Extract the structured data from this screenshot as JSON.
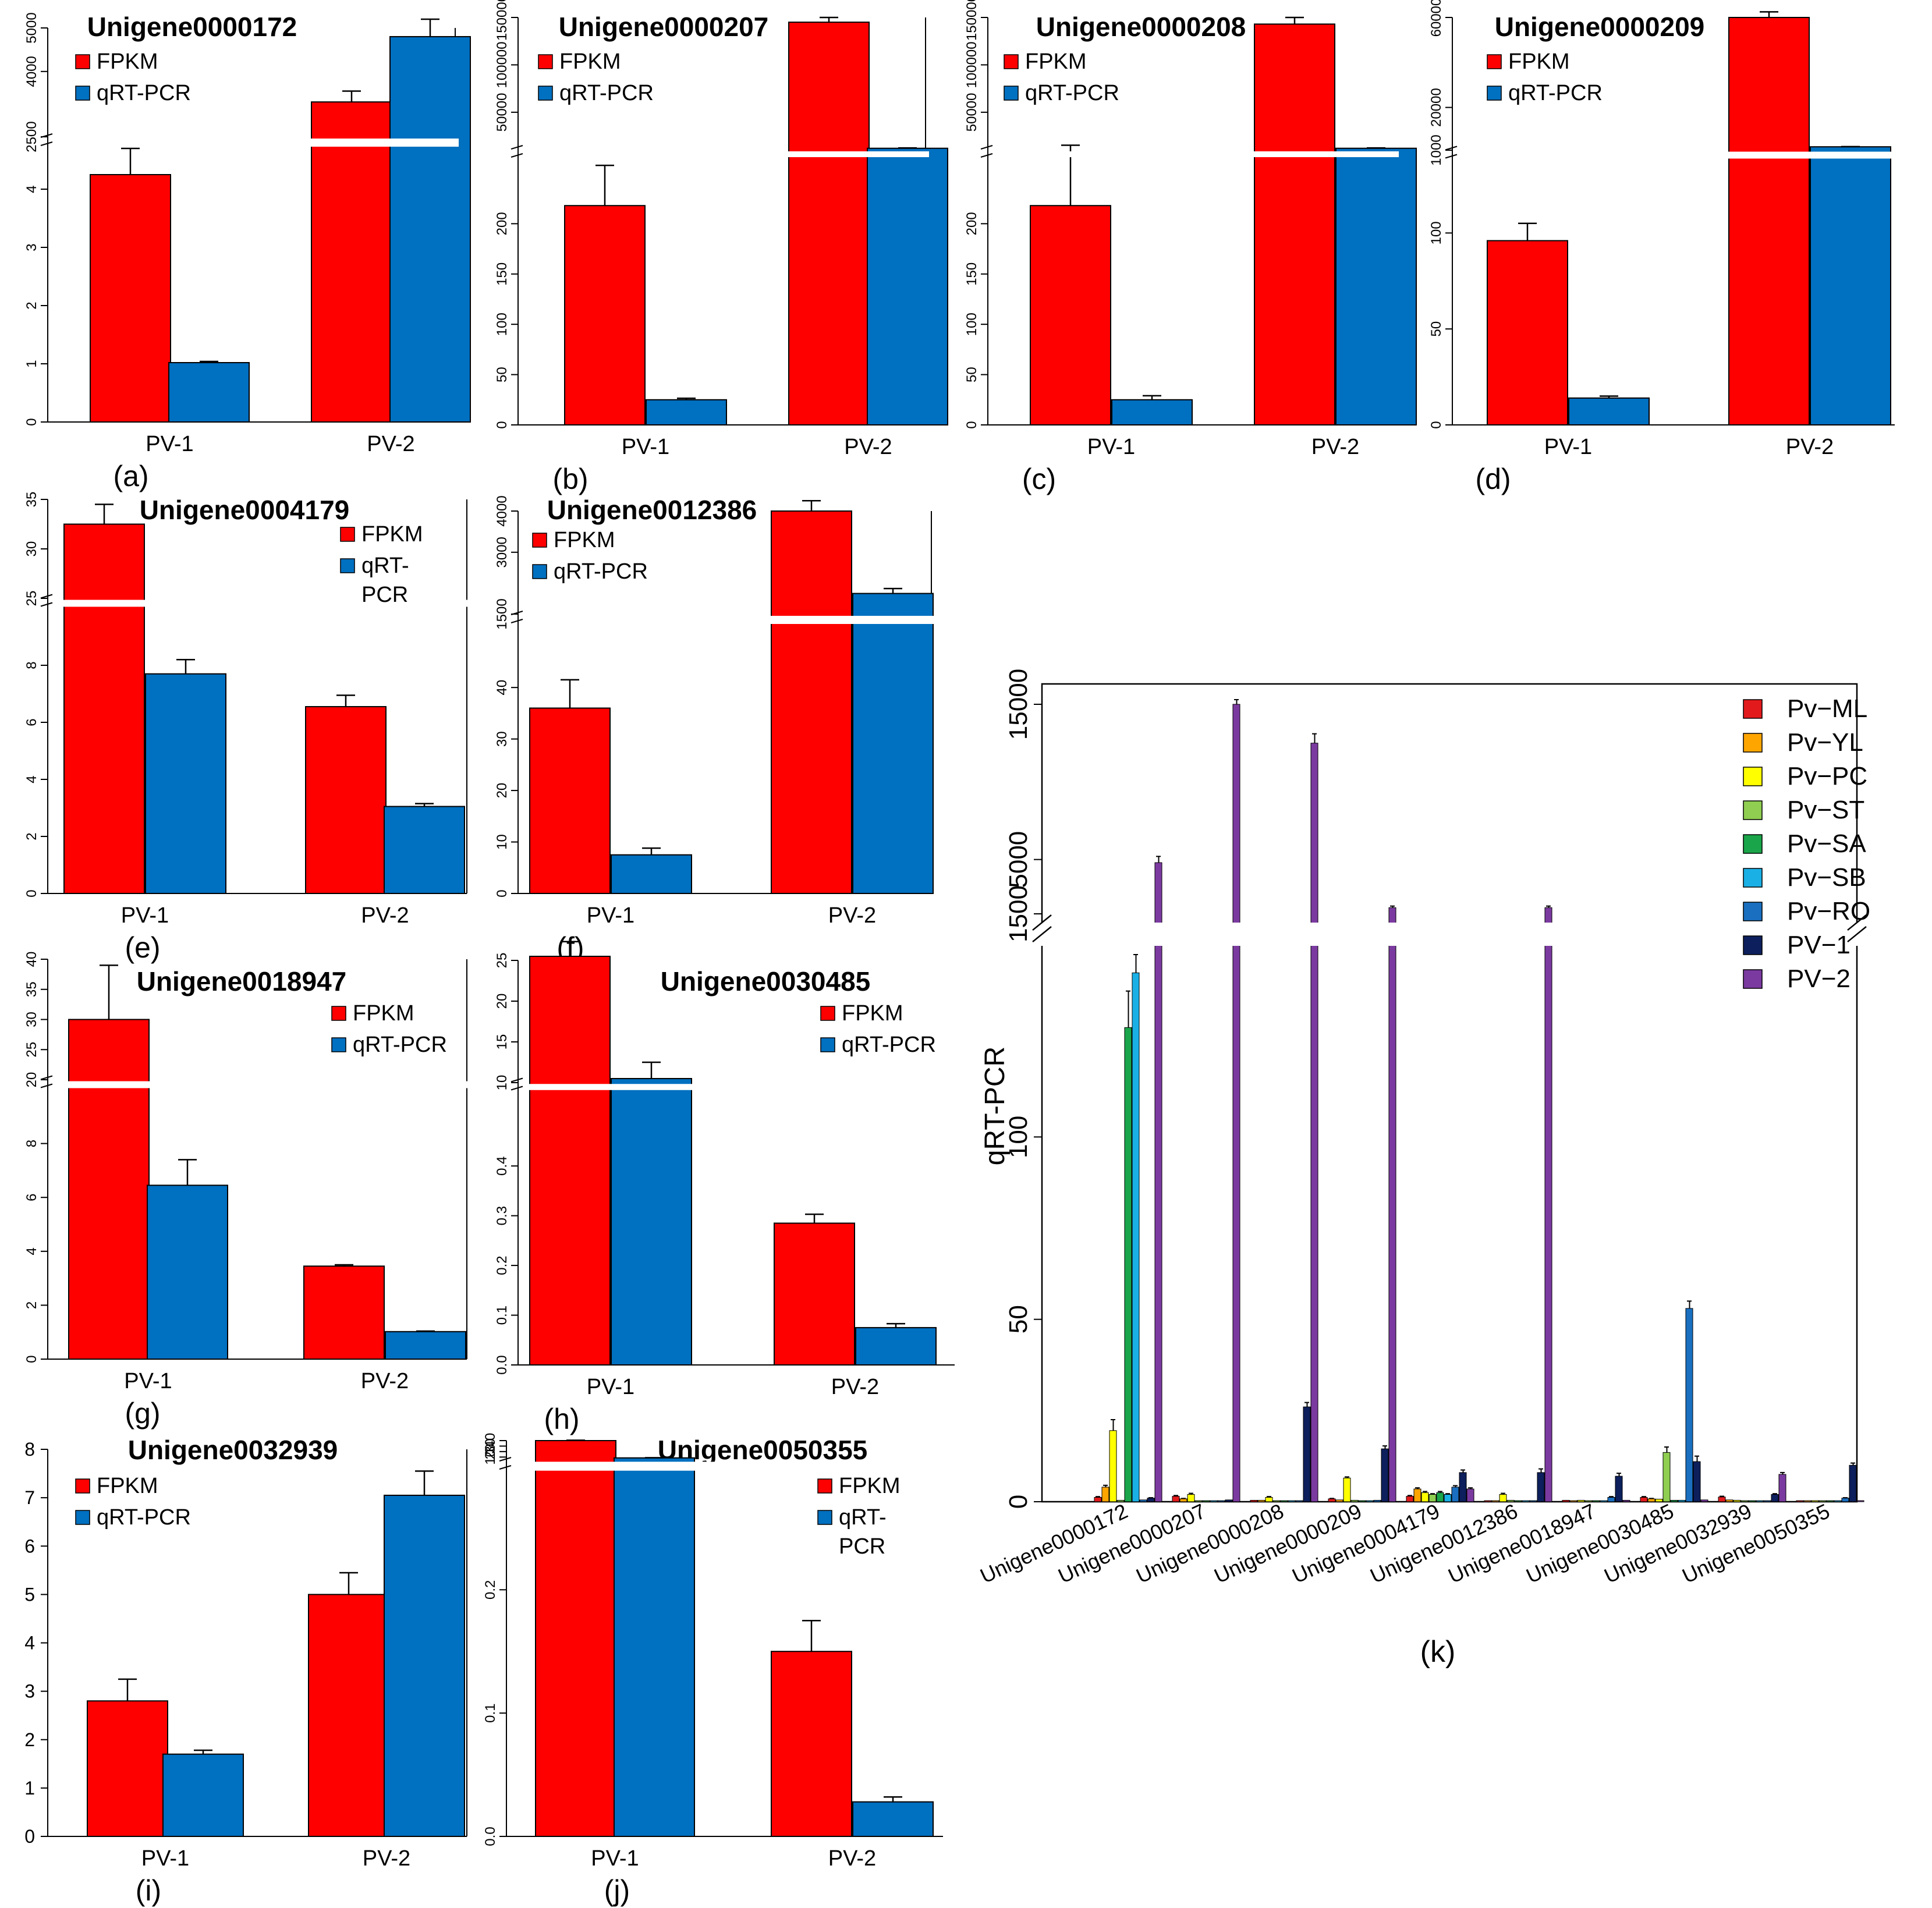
{
  "legend_fpkm": "FPKM",
  "legend_qrt": "qRT-PCR",
  "legend_qrt_line1": "qRT-",
  "legend_qrt_line2": "PCR",
  "ylabel_k": "qRT-PCR",
  "colors": {
    "fpkm": "#ff0000",
    "qrt": "#0070c0",
    "k_series": [
      "#e31a1c",
      "#ffa500",
      "#ffff00",
      "#8fce50",
      "#1aa54a",
      "#1ab0e6",
      "#1a6fc0",
      "#0d1f5c",
      "#7b3aa0"
    ]
  },
  "chart_data": [
    {
      "panel_label": "(a)",
      "type": "bar",
      "title": "Unigene0000172",
      "categories": [
        "PV-1",
        "PV-2"
      ],
      "series": [
        {
          "name": "FPKM",
          "values": [
            4.25,
            3300
          ],
          "errors": [
            0.45,
            250
          ]
        },
        {
          "name": "qRT-PCR",
          "values": [
            1.02,
            4800
          ],
          "errors": [
            0.02,
            400
          ]
        }
      ],
      "axis_break": {
        "lower_range": [
          0,
          4.7
        ],
        "upper_range": [
          2500,
          5000
        ]
      },
      "lower_ticks": [
        "0",
        "1",
        "2",
        "3",
        "4"
      ],
      "upper_ticks": [
        "2500",
        "4000",
        "5000"
      ]
    },
    {
      "panel_label": "(b)",
      "type": "bar",
      "title": "Unigene0000207",
      "categories": [
        "PV-1",
        "PV-2"
      ],
      "series": [
        {
          "name": "FPKM",
          "values": [
            218,
            145000
          ],
          "errors": [
            40,
            5000
          ]
        },
        {
          "name": "qRT-PCR",
          "values": [
            25,
            12000
          ],
          "errors": [
            1.5,
            400
          ]
        }
      ],
      "axis_break": {
        "lower_range": [
          0,
          265
        ],
        "upper_range": [
          10000,
          150000
        ]
      },
      "lower_ticks": [
        "0",
        "50",
        "100",
        "150",
        "200"
      ],
      "upper_ticks": [
        "100000",
        "50000",
        "150000"
      ]
    },
    {
      "panel_label": "(c)",
      "type": "bar",
      "title": "Unigene0000208",
      "categories": [
        "PV-1",
        "PV-2"
      ],
      "series": [
        {
          "name": "FPKM",
          "values": [
            218,
            143000
          ],
          "errors": [
            60,
            7000
          ]
        },
        {
          "name": "qRT-PCR",
          "values": [
            25,
            12000
          ],
          "errors": [
            4,
            400
          ]
        }
      ],
      "axis_break": {
        "lower_range": [
          0,
          265
        ],
        "upper_range": [
          10000,
          150000
        ]
      },
      "lower_ticks": [
        "0",
        "50",
        "100",
        "150",
        "200"
      ],
      "upper_ticks": [
        "100000",
        "50000",
        "150000"
      ]
    },
    {
      "panel_label": "(d)",
      "type": "bar",
      "title": "Unigene0000209",
      "categories": [
        "PV-1",
        "PV-2"
      ],
      "series": [
        {
          "name": "FPKM",
          "values": [
            96,
            60000
          ],
          "errors": [
            9,
            2500
          ]
        },
        {
          "name": "qRT-PCR",
          "values": [
            14,
            2500
          ],
          "errors": [
            1,
            100
          ]
        }
      ],
      "axis_break": {
        "lower_range": [
          0,
          138
        ],
        "upper_range": [
          1000,
          60000
        ]
      },
      "lower_ticks": [
        "0",
        "50",
        "100"
      ],
      "upper_ticks": [
        "1000",
        "20000",
        "60000"
      ]
    },
    {
      "panel_label": "(e)",
      "type": "bar",
      "title": "Unigene0004179",
      "categories": [
        "PV-1",
        "PV-2"
      ],
      "series": [
        {
          "name": "FPKM",
          "values": [
            32.5,
            6.55
          ],
          "errors": [
            2,
            0.4
          ]
        },
        {
          "name": "qRT-PCR",
          "values": [
            7.7,
            3.05
          ],
          "errors": [
            0.5,
            0.1
          ]
        }
      ],
      "axis_break": {
        "lower_range": [
          0,
          10
        ],
        "upper_range": [
          25,
          35
        ]
      },
      "lower_ticks": [
        "0",
        "2",
        "4",
        "6",
        "8"
      ],
      "upper_ticks": [
        "25",
        "30",
        "35"
      ]
    },
    {
      "panel_label": "(f)",
      "type": "bar",
      "title": "Unigene0012386",
      "categories": [
        "PV-1",
        "PV-2"
      ],
      "series": [
        {
          "name": "FPKM",
          "values": [
            36,
            4000
          ],
          "errors": [
            5.5,
            250
          ]
        },
        {
          "name": "qRT-PCR",
          "values": [
            7.5,
            2000
          ],
          "errors": [
            1.3,
            120
          ]
        }
      ],
      "axis_break": {
        "lower_range": [
          0,
          52
        ],
        "upper_range": [
          1500,
          4000
        ]
      },
      "lower_ticks": [
        "0",
        "10",
        "20",
        "30",
        "40"
      ],
      "upper_ticks": [
        "1500",
        "3000",
        "4000"
      ]
    },
    {
      "panel_label": "(g)",
      "type": "bar",
      "title": "Unigene0018947",
      "categories": [
        "PV-1",
        "PV-2"
      ],
      "series": [
        {
          "name": "FPKM",
          "values": [
            30,
            3.45
          ],
          "errors": [
            9,
            0.05
          ]
        },
        {
          "name": "qRT-PCR",
          "values": [
            6.45,
            1.02
          ],
          "errors": [
            0.95,
            0.02
          ]
        }
      ],
      "axis_break": {
        "lower_range": [
          0,
          10
        ],
        "upper_range": [
          20,
          40
        ]
      },
      "lower_ticks": [
        "0",
        "2",
        "4",
        "6",
        "8"
      ],
      "upper_ticks": [
        "20",
        "25",
        "30",
        "35",
        "40"
      ]
    },
    {
      "panel_label": "(h)",
      "type": "bar",
      "title": "Unigene0030485",
      "categories": [
        "PV-1",
        "PV-2"
      ],
      "series": [
        {
          "name": "FPKM",
          "values": [
            25.5,
            0.285
          ],
          "errors": [
            1.8,
            0.018
          ]
        },
        {
          "name": "qRT-PCR",
          "values": [
            10.5,
            0.075
          ],
          "errors": [
            2,
            0.008
          ]
        }
      ],
      "axis_break": {
        "lower_range": [
          0,
          0.55
        ],
        "upper_range": [
          10,
          25
        ]
      },
      "lower_ticks": [
        "0.0",
        "0.1",
        "0.2",
        "0.3",
        "0.4"
      ],
      "upper_ticks": [
        "10",
        "15",
        "20",
        "25"
      ]
    },
    {
      "panel_label": "(i)",
      "type": "bar",
      "title": "Unigene0032939",
      "categories": [
        "PV-1",
        "PV-2"
      ],
      "series": [
        {
          "name": "FPKM",
          "values": [
            2.8,
            5.0
          ],
          "errors": [
            0.45,
            0.45
          ]
        },
        {
          "name": "qRT-PCR",
          "values": [
            1.7,
            7.05
          ],
          "errors": [
            0.08,
            0.5
          ]
        }
      ],
      "ylim": [
        0,
        8
      ],
      "ticks": [
        "0",
        "1",
        "2",
        "3",
        "4",
        "5",
        "6",
        "7",
        "8"
      ]
    },
    {
      "panel_label": "(j)",
      "type": "bar",
      "title": "Unigene0050355",
      "categories": [
        "PV-1",
        "PV-2"
      ],
      "series": [
        {
          "name": "FPKM",
          "values": [
            40,
            0.15
          ],
          "errors": [
            0.7,
            0.025
          ]
        },
        {
          "name": "qRT-PCR",
          "values": [
            8.5,
            0.028
          ],
          "errors": [
            0.3,
            0.004
          ]
        }
      ],
      "axis_break": {
        "lower_range": [
          0,
          0.295
        ],
        "upper_range": [
          5,
          40
        ]
      },
      "lower_ticks": [
        "0.0",
        "0.1",
        "0.2"
      ],
      "upper_ticks": [
        "10",
        "20",
        "30",
        "40"
      ]
    },
    {
      "panel_label": "(k)",
      "type": "bar",
      "title": "",
      "xlabel": "",
      "ylabel": "qRT-PCR",
      "categories": [
        "Unigene0000172",
        "Unigene0000207",
        "Unigene0000208",
        "Unigene0000209",
        "Unigene0004179",
        "Unigene0012386",
        "Unigene0018947",
        "Unigene0030485",
        "Unigene0032939",
        "Unigene0050355"
      ],
      "legend": [
        "Pv−ML",
        "Pv−YL",
        "Pv−PC",
        "Pv−ST",
        "Pv−SA",
        "Pv−SB",
        "Pv−RO",
        "PV−1",
        "PV−2"
      ],
      "series": [
        {
          "name": "Pv−ML",
          "values": [
            1.2,
            1.5,
            0.4,
            0.8,
            1.5,
            0.3,
            0.4,
            1.2,
            1.3,
            0.3
          ],
          "errors": [
            0.2,
            0.2,
            0,
            0.1,
            0.2,
            0,
            0,
            0.2,
            0.2,
            0
          ]
        },
        {
          "name": "Pv−YL",
          "values": [
            4,
            0.8,
            0.4,
            0.5,
            3.5,
            0.3,
            0.3,
            0.8,
            0.5,
            0.3
          ],
          "errors": [
            0.5,
            0.1,
            0,
            0,
            0.3,
            0,
            0,
            0.1,
            0,
            0
          ]
        },
        {
          "name": "Pv−PC",
          "values": [
            19.5,
            2,
            1.2,
            6.5,
            2.5,
            2,
            0.4,
            0.7,
            0.4,
            0.3
          ],
          "errors": [
            3,
            0.3,
            0.2,
            0.3,
            0.3,
            0.3,
            0,
            0,
            0,
            0
          ]
        },
        {
          "name": "Pv−ST",
          "values": [
            0.4,
            0.3,
            0.3,
            0.4,
            2,
            0.4,
            0.3,
            13.5,
            0.3,
            0.3
          ],
          "errors": [
            0,
            0,
            0,
            0,
            0.2,
            0,
            0,
            1.5,
            0,
            0
          ]
        },
        {
          "name": "Pv−SA",
          "values": [
            130,
            0.3,
            0.3,
            0.3,
            2.5,
            0.3,
            0.3,
            0.4,
            0.3,
            0.3
          ],
          "errors": [
            10,
            0,
            0,
            0,
            0.3,
            0,
            0,
            0,
            0,
            0
          ]
        },
        {
          "name": "Pv−SB",
          "values": [
            145,
            0.3,
            0.3,
            0.3,
            2,
            0.3,
            0.3,
            0.4,
            0.3,
            0.3
          ],
          "errors": [
            5,
            0,
            0,
            0,
            0.2,
            0,
            0,
            0,
            0,
            0
          ]
        },
        {
          "name": "Pv−RO",
          "values": [
            0.5,
            0.3,
            0.3,
            0.4,
            4,
            0.3,
            1.2,
            53,
            0.3,
            1
          ],
          "errors": [
            0,
            0,
            0,
            0,
            0.4,
            0,
            0.2,
            2,
            0,
            0.1
          ]
        },
        {
          "name": "PV−1",
          "values": [
            1,
            0.5,
            26,
            14.5,
            8,
            8,
            7,
            11,
            2,
            10
          ],
          "errors": [
            0.1,
            0,
            1.2,
            0.8,
            0.7,
            1,
            0.8,
            1.5,
            0.2,
            0.6
          ]
        },
        {
          "name": "PV−2",
          "values": [
            4800,
            15000,
            12500,
            1900,
            3.5,
            1900,
            0.4,
            0.5,
            7.5,
            0.3
          ],
          "errors": [
            400,
            300,
            600,
            100,
            0.3,
            100,
            0,
            0,
            0.5,
            0
          ]
        }
      ],
      "axis_break": {
        "lower_range": [
          0,
          150
        ],
        "upper_range": [
          1500,
          15000
        ]
      },
      "lower_ticks": [
        "0",
        "50",
        "100"
      ],
      "upper_ticks": [
        "1500",
        "5000",
        "15000"
      ]
    }
  ]
}
